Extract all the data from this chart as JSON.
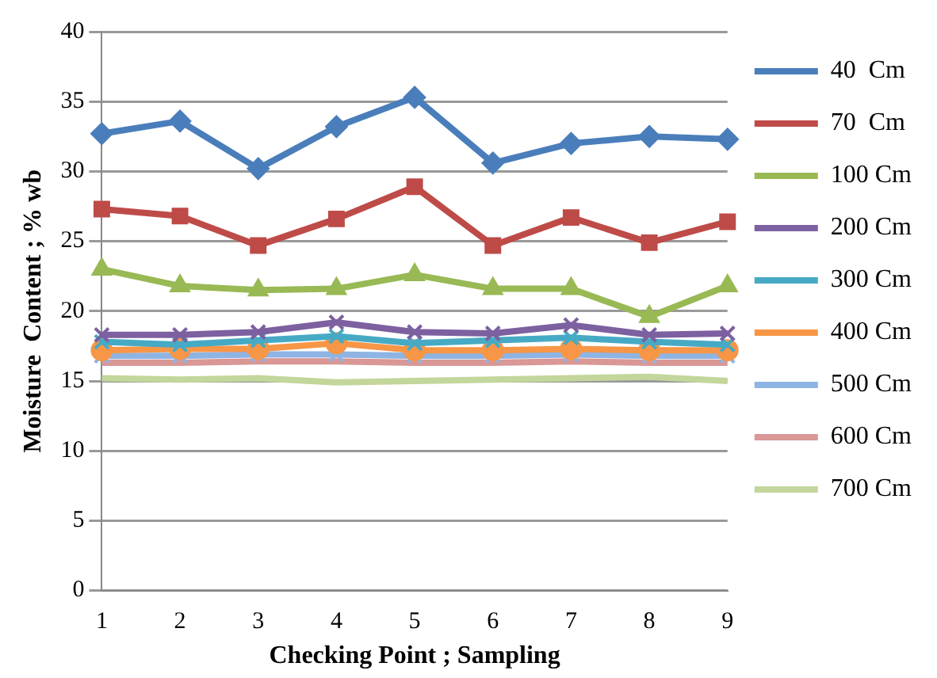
{
  "chart_data": {
    "type": "line",
    "xlabel": "Checking Point ; Sampling",
    "ylabel": "Moisture  Content ; % wb",
    "categories": [
      "1",
      "2",
      "3",
      "4",
      "5",
      "6",
      "7",
      "8",
      "9"
    ],
    "ylim": [
      0,
      40
    ],
    "yticks": [
      0,
      5,
      10,
      15,
      20,
      25,
      30,
      35,
      40
    ],
    "grid": "y",
    "legend": "right",
    "series": [
      {
        "name": "40  Cm",
        "color": "#4a7ebb",
        "marker": "diamond",
        "values": [
          32.7,
          33.6,
          30.2,
          33.2,
          35.3,
          30.6,
          32.0,
          32.5,
          32.3
        ]
      },
      {
        "name": "70  Cm",
        "color": "#be4b48",
        "marker": "square",
        "values": [
          27.3,
          26.8,
          24.7,
          26.6,
          28.9,
          24.7,
          26.7,
          24.9,
          26.4
        ]
      },
      {
        "name": "100 Cm",
        "color": "#98b954",
        "marker": "triangle",
        "values": [
          23.0,
          21.8,
          21.5,
          21.6,
          22.6,
          21.6,
          21.6,
          19.6,
          21.8
        ]
      },
      {
        "name": "200 Cm",
        "color": "#7d60a0",
        "marker": "cross",
        "values": [
          18.3,
          18.3,
          18.5,
          19.2,
          18.5,
          18.4,
          19.0,
          18.3,
          18.4
        ]
      },
      {
        "name": "300 Cm",
        "color": "#46aac5",
        "marker": "cross",
        "values": [
          17.8,
          17.6,
          17.9,
          18.2,
          17.7,
          17.9,
          18.1,
          17.8,
          17.6
        ]
      },
      {
        "name": "400 Cm",
        "color": "#f79646",
        "marker": "circle",
        "values": [
          17.2,
          17.3,
          17.3,
          17.7,
          17.2,
          17.2,
          17.3,
          17.2,
          17.2
        ]
      },
      {
        "name": "500 Cm",
        "color": "#8eb4e3",
        "marker": "cross",
        "values": [
          16.8,
          16.8,
          16.9,
          16.9,
          16.8,
          16.8,
          16.9,
          16.8,
          16.8
        ]
      },
      {
        "name": "600 Cm",
        "color": "#d99795",
        "marker": "none",
        "values": [
          16.3,
          16.3,
          16.4,
          16.4,
          16.3,
          16.3,
          16.4,
          16.3,
          16.3
        ]
      },
      {
        "name": "700 Cm",
        "color": "#c3d69b",
        "marker": "none",
        "values": [
          15.2,
          15.1,
          15.2,
          14.9,
          15.0,
          15.1,
          15.2,
          15.3,
          15.0
        ]
      }
    ]
  }
}
